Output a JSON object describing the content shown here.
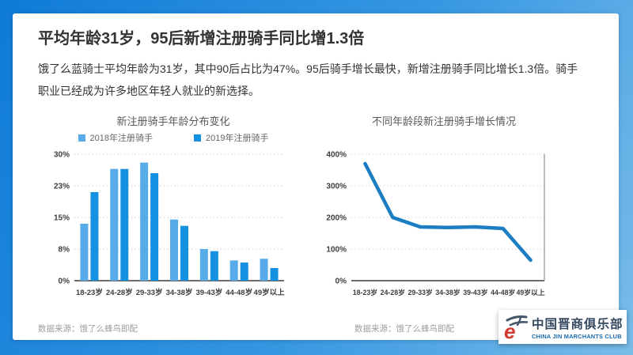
{
  "header": {
    "title": "平均年龄31岁，95后新增注册骑手同比增1.3倍",
    "body": "饿了么蓝骑士平均年龄为31岁，其中90后占比为47%。95后骑手增长最快，新增注册骑手同比增长1.3倍。骑手职业已经成为许多地区年轻人就业的新选择。"
  },
  "chart_data": [
    {
      "type": "bar",
      "title": "新注册骑手年龄分布变化",
      "categories": [
        "18-23岁",
        "24-28岁",
        "29-33岁",
        "34-38岁",
        "39-43岁",
        "44-48岁",
        "49岁以上"
      ],
      "series": [
        {
          "name": "2018年注册骑手",
          "color": "#58abe9",
          "values": [
            13.5,
            26.5,
            28,
            14.5,
            7.5,
            4.8,
            5.2
          ]
        },
        {
          "name": "2019年注册骑手",
          "color": "#1591e2",
          "values": [
            21,
            26.5,
            25.5,
            13,
            7,
            4.3,
            3
          ]
        }
      ],
      "xlabel": "",
      "ylabel": "",
      "ylim": [
        0,
        30
      ],
      "yticks": [
        0,
        7.5,
        15,
        22.5,
        30
      ],
      "ytick_labels": [
        "0%",
        "8%",
        "15%",
        "23%",
        "30%"
      ],
      "grid": "dotted-horizontal",
      "legend_position": "top"
    },
    {
      "type": "line",
      "title": "不同年龄段新注册骑手增长情况",
      "categories": [
        "18-23岁",
        "24-28岁",
        "29-33岁",
        "34-38岁",
        "39-43岁",
        "44-48岁",
        "49岁以上"
      ],
      "series": [
        {
          "name": "新注册骑手同比增长",
          "color": "#1c7dc2",
          "values": [
            370,
            200,
            170,
            168,
            170,
            165,
            65
          ]
        }
      ],
      "xlabel": "",
      "ylabel": "",
      "ylim": [
        0,
        400
      ],
      "yticks": [
        0,
        100,
        200,
        300,
        400
      ],
      "ytick_labels": [
        "0%",
        "100%",
        "200%",
        "300%",
        "400%"
      ],
      "grid": "dotted-horizontal",
      "legend_position": "none",
      "right_border": true
    }
  ],
  "sources": {
    "left": "数据来源：饿了么蜂鸟即配",
    "right": "数据来源：饿了么蜂鸟即配"
  },
  "logo": {
    "name_cn": "中国晋商俱乐部",
    "name_en": "CHINA JIN MARCHANTS CLUB",
    "mark_icon": "jinshang-calligraphy-e-mark",
    "colors": {
      "mark_dark": "#44566a",
      "mark_red": "#d23a30",
      "text_cn": "#33475e",
      "text_en": "#1769b0"
    }
  },
  "colors": {
    "frame_gradient_start": "#0f7bd7",
    "frame_gradient_mid": "#3697e2",
    "frame_gradient_end": "#79bce9",
    "card_bg": "#ffffff",
    "title_text": "#333333",
    "chart_title_text": "#595959",
    "axis_text": "#3d3d3d",
    "gridline": "#cfcfcf",
    "source_text": "#9e9e9e"
  }
}
